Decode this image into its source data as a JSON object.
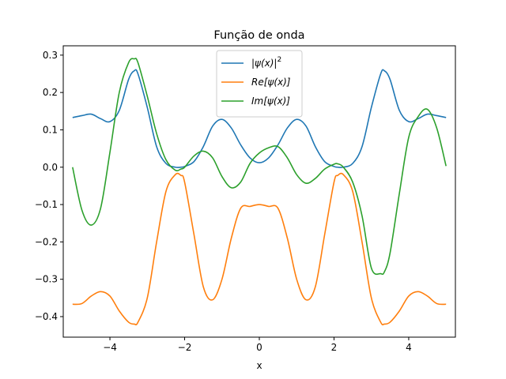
{
  "chart_data": {
    "type": "line",
    "title": "Função de onda",
    "xlabel": "x",
    "ylabel": "",
    "xlim": [
      -5.25,
      5.25
    ],
    "ylim": [
      -0.455,
      0.325
    ],
    "xticks": [
      -4,
      -2,
      0,
      2,
      4
    ],
    "xtick_labels": [
      "−4",
      "−2",
      "0",
      "2",
      "4"
    ],
    "yticks": [
      -0.4,
      -0.3,
      -0.2,
      -0.1,
      0.0,
      0.1,
      0.2,
      0.3
    ],
    "ytick_labels": [
      "−0.4",
      "−0.3",
      "−0.2",
      "−0.1",
      "0.0",
      "0.1",
      "0.2",
      "0.3"
    ],
    "grid": false,
    "legend_position": "upper center",
    "x": [
      -5.0,
      -4.75,
      -4.5,
      -4.25,
      -4.0,
      -3.75,
      -3.5,
      -3.35,
      -3.25,
      -3.0,
      -2.75,
      -2.5,
      -2.25,
      -2.1,
      -2.0,
      -1.75,
      -1.5,
      -1.25,
      -1.0,
      -0.75,
      -0.5,
      -0.25,
      0.0,
      0.25,
      0.5,
      0.75,
      1.0,
      1.25,
      1.5,
      1.75,
      2.0,
      2.1,
      2.25,
      2.5,
      2.75,
      3.0,
      3.25,
      3.35,
      3.5,
      3.75,
      4.0,
      4.25,
      4.5,
      4.75,
      5.0
    ],
    "series": [
      {
        "name": "|ψ(x)|²",
        "latex_label": {
          "base": "|ψ(x)|",
          "sup": "2"
        },
        "color": "#1f77b4",
        "values": [
          0.133,
          0.138,
          0.142,
          0.13,
          0.122,
          0.152,
          0.235,
          0.258,
          0.25,
          0.16,
          0.055,
          0.01,
          0.0,
          0.0,
          0.002,
          0.015,
          0.055,
          0.11,
          0.128,
          0.105,
          0.06,
          0.025,
          0.012,
          0.025,
          0.06,
          0.105,
          0.128,
          0.11,
          0.055,
          0.015,
          0.002,
          0.0,
          0.0,
          0.01,
          0.055,
          0.16,
          0.25,
          0.258,
          0.235,
          0.152,
          0.122,
          0.13,
          0.142,
          0.138,
          0.133
        ]
      },
      {
        "name": "Re[ψ(x)]",
        "latex_label": {
          "base": "Re[ψ(x)]",
          "sup": ""
        },
        "color": "#ff7f0e",
        "values": [
          -0.367,
          -0.365,
          -0.345,
          -0.333,
          -0.345,
          -0.385,
          -0.415,
          -0.42,
          -0.415,
          -0.35,
          -0.2,
          -0.065,
          -0.02,
          -0.022,
          -0.04,
          -0.18,
          -0.32,
          -0.355,
          -0.3,
          -0.19,
          -0.11,
          -0.105,
          -0.1,
          -0.105,
          -0.11,
          -0.19,
          -0.3,
          -0.355,
          -0.32,
          -0.18,
          -0.04,
          -0.022,
          -0.02,
          -0.065,
          -0.2,
          -0.35,
          -0.415,
          -0.42,
          -0.415,
          -0.385,
          -0.345,
          -0.333,
          -0.345,
          -0.365,
          -0.367
        ]
      },
      {
        "name": "Im[ψ(x)]",
        "latex_label": {
          "base": "Im[ψ(x)]",
          "sup": ""
        },
        "color": "#2ca02c",
        "values": [
          0.0,
          -0.115,
          -0.155,
          -0.11,
          0.04,
          0.2,
          0.28,
          0.29,
          0.28,
          0.19,
          0.09,
          0.02,
          -0.008,
          -0.005,
          0.0,
          0.03,
          0.043,
          0.025,
          -0.025,
          -0.055,
          -0.04,
          0.01,
          0.038,
          0.052,
          0.055,
          0.025,
          -0.02,
          -0.043,
          -0.03,
          -0.005,
          0.008,
          0.009,
          0.0,
          -0.04,
          -0.13,
          -0.27,
          -0.285,
          -0.28,
          -0.23,
          -0.07,
          0.08,
          0.135,
          0.155,
          0.105,
          0.003
        ]
      }
    ]
  }
}
